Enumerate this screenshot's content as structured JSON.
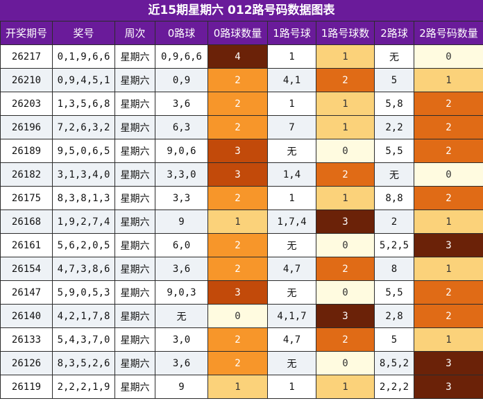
{
  "title": "近15期星期六 012路号码数据图表",
  "headers": [
    "开奖期号",
    "奖号",
    "周次",
    "0路球",
    "0路球数量",
    "1路号球",
    "1路号球数",
    "2路球",
    "2路号码数量"
  ],
  "colors": {
    "header_bg": "#6a1b9a",
    "count_0": "#fffbe0",
    "count_1": "#fbd27a",
    "count_2_light": "#f7962a",
    "count_2_dark": "#e06b16",
    "count_3_mid": "#c24a0a",
    "count_3_dark": "#6b2208",
    "count_4": "#6b2208"
  },
  "rows": [
    {
      "issue": "26217",
      "nums": "0,1,9,6,6",
      "week": "星期六",
      "r0": "0,9,6,6",
      "c0": "4",
      "r1": "1",
      "c1": "1",
      "r2": "无",
      "c2": "0"
    },
    {
      "issue": "26210",
      "nums": "0,9,4,5,1",
      "week": "星期六",
      "r0": "0,9",
      "c0": "2",
      "r1": "4,1",
      "c1": "2",
      "r2": "5",
      "c2": "1"
    },
    {
      "issue": "26203",
      "nums": "1,3,5,6,8",
      "week": "星期六",
      "r0": "3,6",
      "c0": "2",
      "r1": "1",
      "c1": "1",
      "r2": "5,8",
      "c2": "2"
    },
    {
      "issue": "26196",
      "nums": "7,2,6,3,2",
      "week": "星期六",
      "r0": "6,3",
      "c0": "2",
      "r1": "7",
      "c1": "1",
      "r2": "2,2",
      "c2": "2"
    },
    {
      "issue": "26189",
      "nums": "9,5,0,6,5",
      "week": "星期六",
      "r0": "9,0,6",
      "c0": "3",
      "r1": "无",
      "c1": "0",
      "r2": "5,5",
      "c2": "2"
    },
    {
      "issue": "26182",
      "nums": "3,1,3,4,0",
      "week": "星期六",
      "r0": "3,3,0",
      "c0": "3",
      "r1": "1,4",
      "c1": "2",
      "r2": "无",
      "c2": "0"
    },
    {
      "issue": "26175",
      "nums": "8,3,8,1,3",
      "week": "星期六",
      "r0": "3,3",
      "c0": "2",
      "r1": "1",
      "c1": "1",
      "r2": "8,8",
      "c2": "2"
    },
    {
      "issue": "26168",
      "nums": "1,9,2,7,4",
      "week": "星期六",
      "r0": "9",
      "c0": "1",
      "r1": "1,7,4",
      "c1": "3",
      "r2": "2",
      "c2": "1"
    },
    {
      "issue": "26161",
      "nums": "5,6,2,0,5",
      "week": "星期六",
      "r0": "6,0",
      "c0": "2",
      "r1": "无",
      "c1": "0",
      "r2": "5,2,5",
      "c2": "3"
    },
    {
      "issue": "26154",
      "nums": "4,7,3,8,6",
      "week": "星期六",
      "r0": "3,6",
      "c0": "2",
      "r1": "4,7",
      "c1": "2",
      "r2": "8",
      "c2": "1"
    },
    {
      "issue": "26147",
      "nums": "5,9,0,5,3",
      "week": "星期六",
      "r0": "9,0,3",
      "c0": "3",
      "r1": "无",
      "c1": "0",
      "r2": "5,5",
      "c2": "2"
    },
    {
      "issue": "26140",
      "nums": "4,2,1,7,8",
      "week": "星期六",
      "r0": "无",
      "c0": "0",
      "r1": "4,1,7",
      "c1": "3",
      "r2": "2,8",
      "c2": "2"
    },
    {
      "issue": "26133",
      "nums": "5,4,3,7,0",
      "week": "星期六",
      "r0": "3,0",
      "c0": "2",
      "r1": "4,7",
      "c1": "2",
      "r2": "5",
      "c2": "1"
    },
    {
      "issue": "26126",
      "nums": "8,3,5,2,6",
      "week": "星期六",
      "r0": "3,6",
      "c0": "2",
      "r1": "无",
      "c1": "0",
      "r2": "8,5,2",
      "c2": "3"
    },
    {
      "issue": "26119",
      "nums": "2,2,2,1,9",
      "week": "星期六",
      "r0": "9",
      "c0": "1",
      "r1": "1",
      "c1": "1",
      "r2": "2,2,2",
      "c2": "3"
    }
  ]
}
